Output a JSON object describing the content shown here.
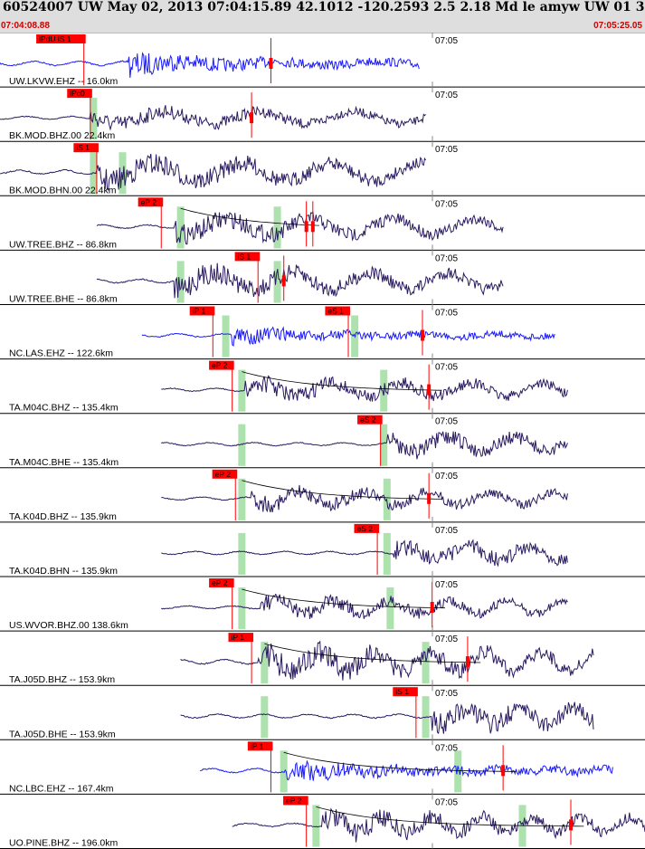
{
  "header": {
    "title": "60524007 UW May 02, 2013 07:04:15.89   42.1012 -120.2593  2.5 2.18 Md le amyw UW 01   3",
    "start_time": "07:04:08.88",
    "end_time": "07:05:25.05"
  },
  "colors": {
    "header_bg": "#dedede",
    "trace_z": "#1a1aff",
    "trace_dark": "#2a1a60",
    "pick_red": "#ff0000",
    "window_green": "#9fdc9f",
    "grid_gray": "#888888"
  },
  "chart_data": {
    "type": "seismogram",
    "time_tick_label": "07:05",
    "time_range": [
      "07:04:08.88",
      "07:05:25.05"
    ],
    "series": [
      {
        "station": "UW.LKVW.EHZ -- 16.0km",
        "color": "blue",
        "amp": 0.85,
        "start": 0.0,
        "end": 0.65,
        "quiet": 0.2,
        "picks": [
          {
            "label": "iPdU iS 1",
            "t": 0.13
          }
        ],
        "windows": [],
        "marks": [
          0.42
        ],
        "curve": false
      },
      {
        "station": "BK.MOD.BHZ.00 22.4km",
        "color": "dark",
        "amp": 0.55,
        "start": 0.0,
        "end": 0.66,
        "quiet": 0.14,
        "picks": [
          {
            "label": "iPc0",
            "t": 0.14
          }
        ],
        "windows": [
          0.145
        ],
        "marks": [
          0.39
        ],
        "curve": false
      },
      {
        "station": "BK.MOD.BHN.00 22.4km",
        "color": "dark",
        "amp": 0.8,
        "start": 0.0,
        "end": 0.66,
        "quiet": 0.15,
        "picks": [
          {
            "label": "iS 1",
            "t": 0.15
          }
        ],
        "windows": [
          0.145,
          0.19
        ],
        "marks": [],
        "curve": false
      },
      {
        "station": "UW.TREE.BHZ -- 86.8km",
        "color": "dark",
        "amp": 0.7,
        "start": 0.15,
        "end": 0.78,
        "quiet": 0.27,
        "picks": [
          {
            "label": "eP 2",
            "t": 0.25
          }
        ],
        "windows": [
          0.28,
          0.43
        ],
        "marks": [
          0.475,
          0.485
        ],
        "curve": true
      },
      {
        "station": "UW.TREE.BHE -- 86.8km",
        "color": "dark",
        "amp": 0.75,
        "start": 0.15,
        "end": 0.78,
        "quiet": 0.27,
        "picks": [
          {
            "label": "iS 1",
            "t": 0.4
          }
        ],
        "windows": [
          0.28,
          0.43
        ],
        "marks": [
          0.44
        ],
        "curve": false
      },
      {
        "station": "NC.LAS.EHZ -- 122.6km",
        "color": "blue",
        "amp": 0.65,
        "start": 0.22,
        "end": 0.86,
        "quiet": 0.36,
        "picks": [
          {
            "label": "iP 1",
            "t": 0.33
          },
          {
            "label": "eS 1",
            "t": 0.54
          }
        ],
        "windows": [
          0.35,
          0.55
        ],
        "marks": [
          0.655
        ],
        "curve": false
      },
      {
        "station": "TA.M04C.BHZ -- 135.4km",
        "color": "dark",
        "amp": 0.6,
        "start": 0.25,
        "end": 0.88,
        "quiet": 0.38,
        "picks": [
          {
            "label": "eP 2",
            "t": 0.36
          }
        ],
        "windows": [
          0.375,
          0.595
        ],
        "marks": [
          0.665
        ],
        "curve": true
      },
      {
        "station": "TA.M04C.BHE -- 135.4km",
        "color": "dark",
        "amp": 0.6,
        "start": 0.25,
        "end": 0.88,
        "quiet": 0.6,
        "picks": [
          {
            "label": "eS 2",
            "t": 0.59
          }
        ],
        "windows": [
          0.375,
          0.595
        ],
        "marks": [],
        "curve": false
      },
      {
        "station": "TA.K04D.BHZ -- 135.9km",
        "color": "dark",
        "amp": 0.55,
        "start": 0.25,
        "end": 0.88,
        "quiet": 0.39,
        "picks": [
          {
            "label": "eP 2",
            "t": 0.365
          }
        ],
        "windows": [
          0.375,
          0.6
        ],
        "marks": [
          0.665
        ],
        "curve": true
      },
      {
        "station": "TA.K04D.BHN -- 135.9km",
        "color": "dark",
        "amp": 0.6,
        "start": 0.25,
        "end": 0.88,
        "quiet": 0.61,
        "picks": [
          {
            "label": "eS 2",
            "t": 0.585
          }
        ],
        "windows": [
          0.375,
          0.6
        ],
        "marks": [],
        "curve": false
      },
      {
        "station": "US.WVOR.BHZ.00 138.6km",
        "color": "dark",
        "amp": 0.55,
        "start": 0.25,
        "end": 0.88,
        "quiet": 0.4,
        "picks": [
          {
            "label": "eP 2",
            "t": 0.36
          }
        ],
        "windows": [
          0.375,
          0.605
        ],
        "marks": [
          0.67
        ],
        "curve": true
      },
      {
        "station": "TA.J05D.BHZ -- 153.9km",
        "color": "dark",
        "amp": 0.85,
        "start": 0.28,
        "end": 0.92,
        "quiet": 0.4,
        "picks": [
          {
            "label": "iP 1",
            "t": 0.39
          }
        ],
        "windows": [
          0.41,
          0.66
        ],
        "marks": [
          0.725
        ],
        "curve": true
      },
      {
        "station": "TA.J05D.BHE -- 153.9km",
        "color": "dark",
        "amp": 0.75,
        "start": 0.28,
        "end": 0.92,
        "quiet": 0.67,
        "picks": [
          {
            "label": "iS 1",
            "t": 0.645
          }
        ],
        "windows": [
          0.41,
          0.66
        ],
        "marks": [],
        "curve": false
      },
      {
        "station": "NC.LBC.EHZ -- 167.4km",
        "color": "blue",
        "amp": 0.8,
        "start": 0.31,
        "end": 0.95,
        "quiet": 0.44,
        "picks": [
          {
            "label": "iP 1",
            "t": 0.42
          }
        ],
        "windows": [
          0.44,
          0.71
        ],
        "marks": [
          0.78
        ],
        "curve": true
      },
      {
        "station": "UO.PINE.BHZ -- 196.0km",
        "color": "dark",
        "amp": 0.7,
        "start": 0.36,
        "end": 1.0,
        "quiet": 0.5,
        "picks": [
          {
            "label": "eP 2",
            "t": 0.475
          }
        ],
        "windows": [
          0.49,
          0.81
        ],
        "marks": [
          0.885
        ],
        "curve": true
      }
    ]
  }
}
